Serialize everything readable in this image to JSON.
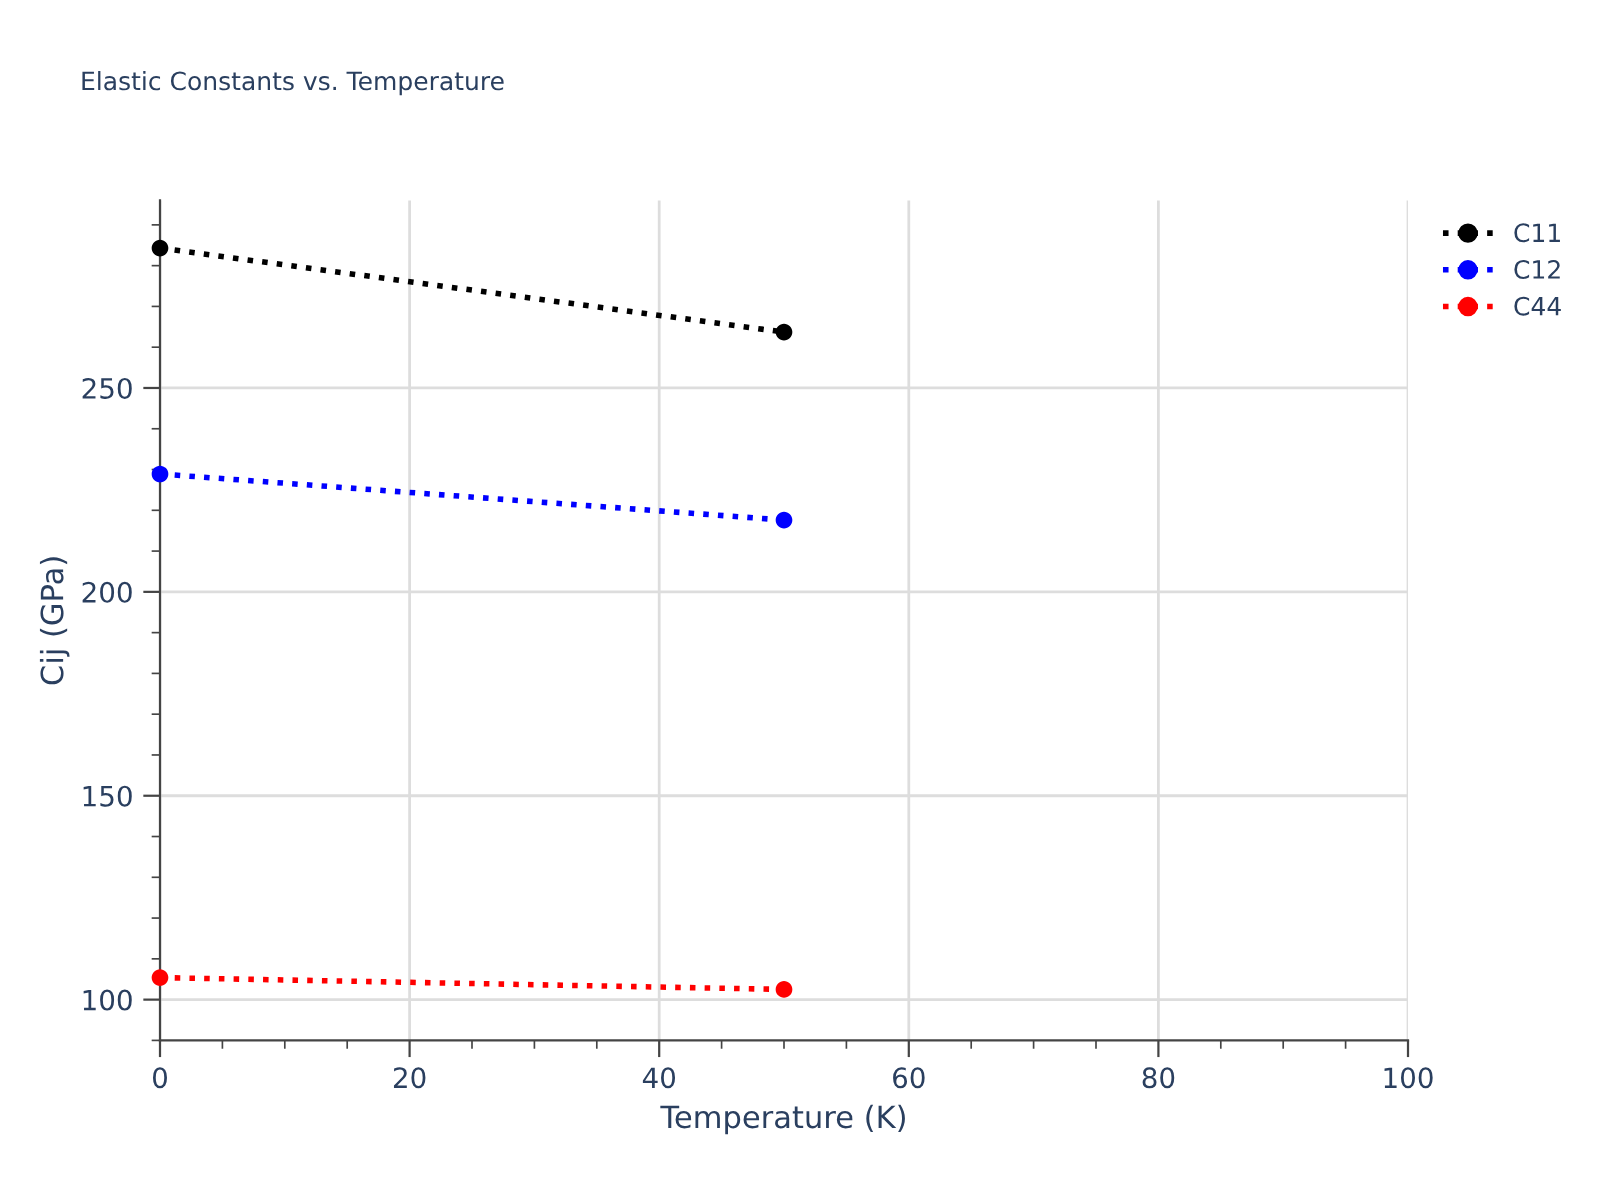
{
  "chart_data": {
    "type": "line",
    "title": "Elastic Constants vs. Temperature",
    "xlabel": "Temperature (K)",
    "ylabel": "Cij (GPa)",
    "x": [
      0,
      50
    ],
    "series": [
      {
        "name": "C11",
        "color": "#000000",
        "values": [
          284.3,
          263.7
        ]
      },
      {
        "name": "C12",
        "color": "#0000ff",
        "values": [
          228.9,
          217.6
        ]
      },
      {
        "name": "C44",
        "color": "#ff0000",
        "values": [
          105.4,
          102.5
        ]
      }
    ],
    "xlim": [
      0,
      100
    ],
    "xticks": [
      0,
      20,
      40,
      60,
      80,
      100
    ],
    "ylim": [
      90,
      296
    ],
    "yticks": [
      100,
      150,
      200,
      250
    ],
    "grid": true,
    "legend": "top right",
    "marker": "circle",
    "line_style": "dotted"
  }
}
